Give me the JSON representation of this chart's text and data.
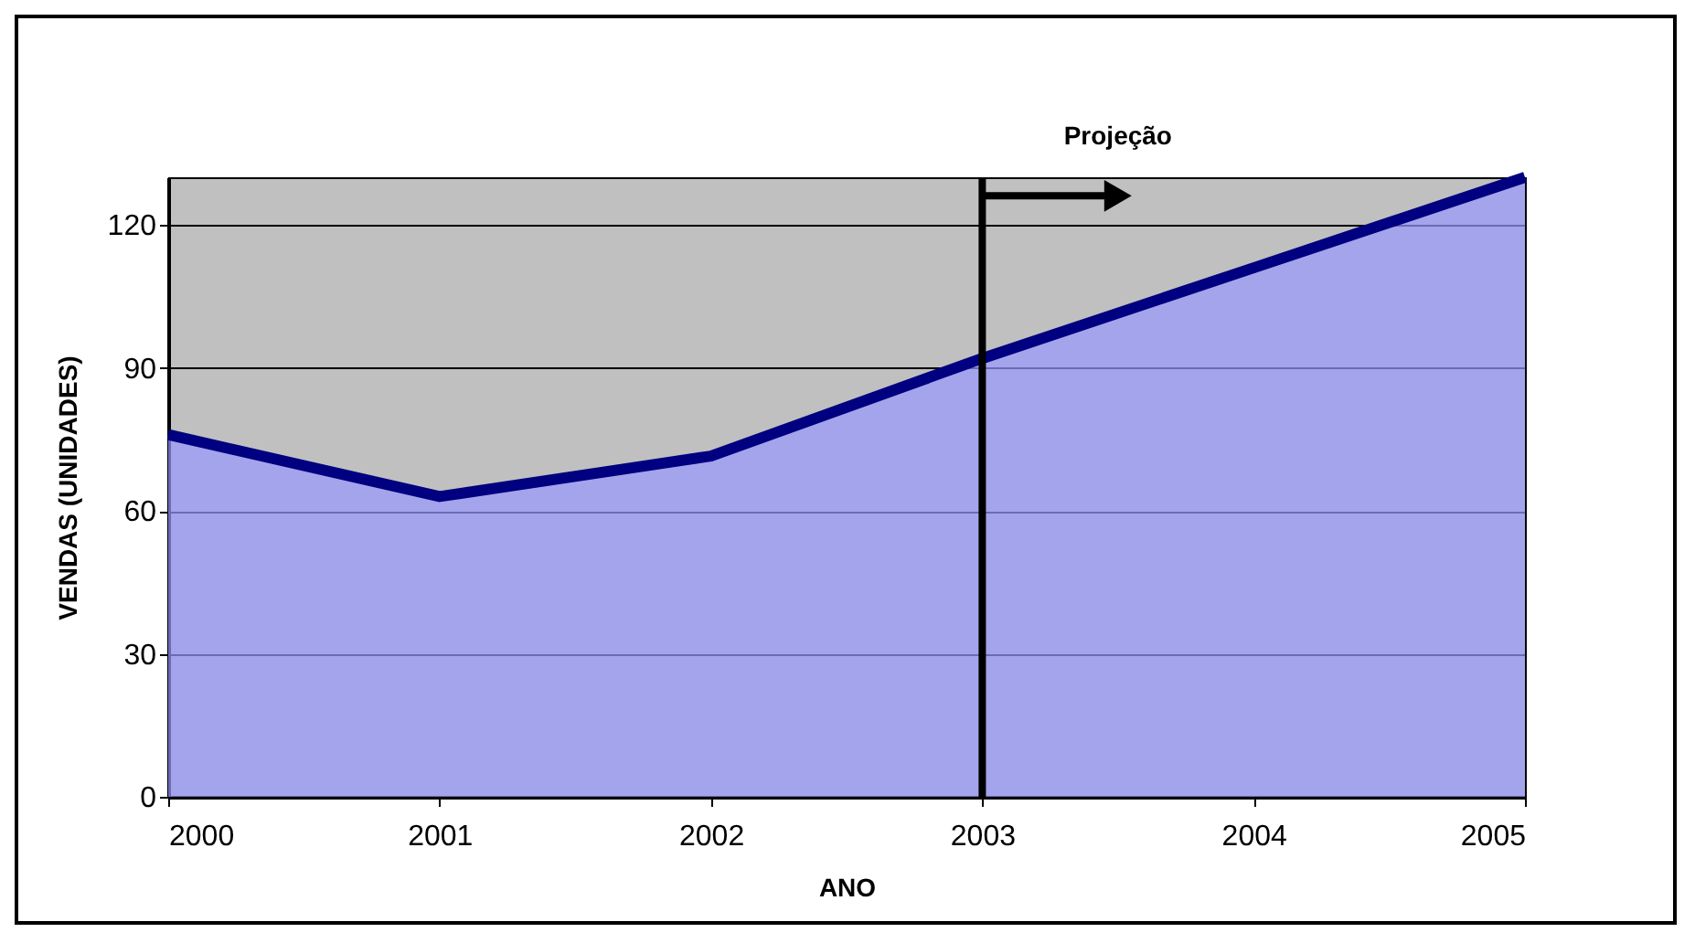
{
  "chart_data": {
    "type": "area",
    "xlabel": "ANO",
    "ylabel": "VENDAS (UNIDADES)",
    "x": [
      2000,
      2001,
      2002,
      2003,
      2004,
      2005
    ],
    "series": [
      {
        "color": "#9999ff",
        "values": [
          76,
          63,
          71.5,
          92,
          111,
          130
        ]
      }
    ],
    "xlim": [
      2000,
      2005
    ],
    "xticks": [
      2000,
      2001,
      2002,
      2003,
      2004,
      2005
    ],
    "ylim": [
      0,
      130
    ],
    "yticks": [
      0,
      30,
      60,
      90,
      120
    ],
    "grid": "y",
    "ref_lines": [
      {
        "axis": "x",
        "value": 2003,
        "label": "Projeção",
        "color": "#000000"
      }
    ]
  }
}
